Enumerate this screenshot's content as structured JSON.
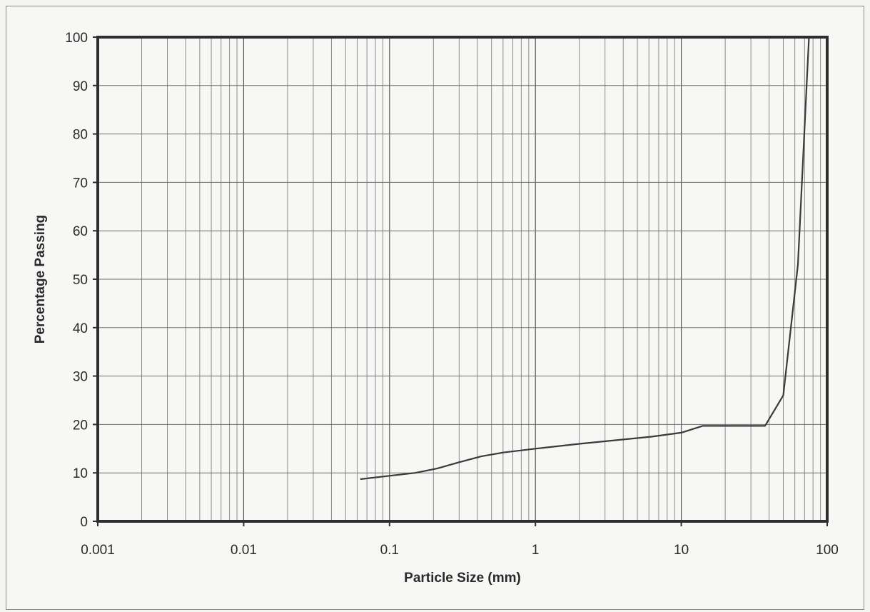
{
  "chart_data": {
    "type": "line",
    "title": "",
    "xlabel": "Particle Size (mm)",
    "ylabel": "Percentage Passing",
    "x_scale": "log",
    "xlim": [
      0.001,
      100
    ],
    "ylim": [
      0,
      100
    ],
    "x_ticks": [
      "0.001",
      "0.01",
      "0.1",
      "1",
      "10",
      "100"
    ],
    "y_ticks": [
      "0",
      "10",
      "20",
      "30",
      "40",
      "50",
      "60",
      "70",
      "80",
      "90",
      "100"
    ],
    "grid": true,
    "legend": "none",
    "line_color": "#3a3a3a",
    "series": [
      {
        "x": [
          0.063,
          0.15,
          0.212,
          0.3,
          0.425,
          0.6,
          1.0,
          2.0,
          6.3,
          10,
          14,
          20,
          37.5,
          50,
          63,
          75
        ],
        "y": [
          8.7,
          10.0,
          10.9,
          12.2,
          13.4,
          14.2,
          15.0,
          16.0,
          17.5,
          18.3,
          19.7,
          19.7,
          19.7,
          26.0,
          53.0,
          100
        ]
      }
    ]
  }
}
